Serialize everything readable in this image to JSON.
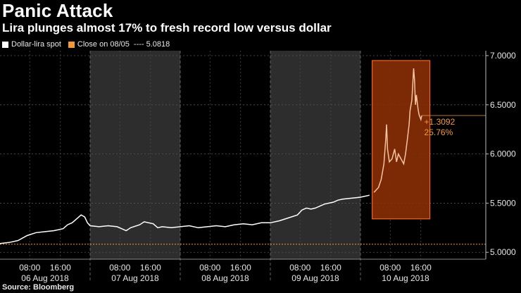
{
  "chart_data": {
    "type": "line",
    "title": "Panic Attack",
    "subtitle": "Lira plunges almost 17% to fresh record low versus dollar",
    "source": "Source: Bloomberg",
    "legend": [
      {
        "label": "Dollar-lira spot",
        "color": "#ffffff"
      },
      {
        "label": "Close on 08/05",
        "color": "#f29a3a",
        "value_text": "---- 5.0818"
      }
    ],
    "ylim": [
      4.93,
      7.05
    ],
    "y_ticks": [
      "5.0000",
      "5.5000",
      "6.0000",
      "6.5000",
      "7.0000"
    ],
    "y_tick_values": [
      5.0,
      5.5,
      6.0,
      6.5,
      7.0
    ],
    "x_tick_labels": [
      {
        "t": 0.33,
        "label": "08:00"
      },
      {
        "t": 0.67,
        "label": "16:00"
      },
      {
        "t": 1.33,
        "label": "08:00"
      },
      {
        "t": 1.67,
        "label": "16:00"
      },
      {
        "t": 2.33,
        "label": "08:00"
      },
      {
        "t": 2.67,
        "label": "16:00"
      },
      {
        "t": 3.33,
        "label": "08:00"
      },
      {
        "t": 3.67,
        "label": "16:00"
      },
      {
        "t": 4.33,
        "label": "08:00"
      },
      {
        "t": 4.67,
        "label": "16:00"
      }
    ],
    "day_labels": [
      {
        "t": 0.5,
        "label": "06 Aug 2018"
      },
      {
        "t": 1.5,
        "label": "07 Aug 2018"
      },
      {
        "t": 2.5,
        "label": "08 Aug 2018"
      },
      {
        "t": 3.5,
        "label": "09 Aug 2018"
      },
      {
        "t": 4.5,
        "label": "10 Aug 2018"
      }
    ],
    "x_range_days": [
      0,
      5.35
    ],
    "reference_line": {
      "value": 5.0818,
      "label": "Close on 08/05"
    },
    "highlight": {
      "x_start": 4.13,
      "x_end": 4.77,
      "y_low": 5.34,
      "y_high": 6.95
    },
    "annotation": {
      "line1": "+1.3092",
      "line2": "25.76%",
      "y_value": 6.391
    },
    "series": [
      {
        "name": "Dollar-lira spot",
        "points": [
          [
            0.0,
            5.09
          ],
          [
            0.1,
            5.1
          ],
          [
            0.2,
            5.12
          ],
          [
            0.3,
            5.17
          ],
          [
            0.4,
            5.2
          ],
          [
            0.5,
            5.21
          ],
          [
            0.6,
            5.22
          ],
          [
            0.7,
            5.24
          ],
          [
            0.75,
            5.28
          ],
          [
            0.8,
            5.3
          ],
          [
            0.85,
            5.34
          ],
          [
            0.9,
            5.38
          ],
          [
            0.94,
            5.36
          ],
          [
            0.97,
            5.3
          ],
          [
            1.0,
            5.27
          ],
          [
            1.1,
            5.26
          ],
          [
            1.2,
            5.27
          ],
          [
            1.3,
            5.26
          ],
          [
            1.35,
            5.24
          ],
          [
            1.4,
            5.22
          ],
          [
            1.45,
            5.25
          ],
          [
            1.55,
            5.28
          ],
          [
            1.6,
            5.31
          ],
          [
            1.7,
            5.29
          ],
          [
            1.75,
            5.25
          ],
          [
            1.8,
            5.26
          ],
          [
            1.9,
            5.25
          ],
          [
            2.0,
            5.26
          ],
          [
            2.1,
            5.27
          ],
          [
            2.2,
            5.25
          ],
          [
            2.3,
            5.26
          ],
          [
            2.4,
            5.27
          ],
          [
            2.5,
            5.26
          ],
          [
            2.6,
            5.28
          ],
          [
            2.7,
            5.29
          ],
          [
            2.8,
            5.28
          ],
          [
            2.9,
            5.3
          ],
          [
            3.0,
            5.3
          ],
          [
            3.1,
            5.32
          ],
          [
            3.2,
            5.35
          ],
          [
            3.3,
            5.38
          ],
          [
            3.35,
            5.43
          ],
          [
            3.4,
            5.45
          ],
          [
            3.45,
            5.44
          ],
          [
            3.5,
            5.45
          ],
          [
            3.55,
            5.47
          ],
          [
            3.6,
            5.49
          ],
          [
            3.65,
            5.5
          ],
          [
            3.7,
            5.51
          ],
          [
            3.75,
            5.53
          ],
          [
            3.8,
            5.54
          ],
          [
            3.9,
            5.55
          ],
          [
            4.0,
            5.56
          ],
          [
            4.1,
            5.58
          ],
          [
            4.15,
            5.61
          ],
          [
            4.2,
            5.66
          ],
          [
            4.23,
            5.74
          ],
          [
            4.26,
            5.9
          ],
          [
            4.28,
            6.14
          ],
          [
            4.29,
            6.3
          ],
          [
            4.3,
            6.05
          ],
          [
            4.32,
            5.92
          ],
          [
            4.35,
            5.95
          ],
          [
            4.38,
            6.05
          ],
          [
            4.4,
            5.92
          ],
          [
            4.42,
            6.0
          ],
          [
            4.45,
            5.95
          ],
          [
            4.48,
            5.9
          ],
          [
            4.5,
            6.0
          ],
          [
            4.52,
            6.15
          ],
          [
            4.54,
            6.3
          ],
          [
            4.55,
            6.44
          ],
          [
            4.57,
            6.55
          ],
          [
            4.58,
            6.7
          ],
          [
            4.59,
            6.87
          ],
          [
            4.6,
            6.75
          ],
          [
            4.61,
            6.5
          ],
          [
            4.62,
            6.6
          ],
          [
            4.64,
            6.45
          ],
          [
            4.65,
            6.4
          ],
          [
            4.67,
            6.35
          ],
          [
            4.68,
            6.39
          ]
        ]
      }
    ],
    "colors": {
      "background": "#000000",
      "weekday_band": "#2d2d2d",
      "line": "#ffffff",
      "highlight_line": "#f6c3a3",
      "reference": "#f29a3a",
      "highlight_fill": "#8a2e05",
      "highlight_border": "#f26522"
    }
  }
}
